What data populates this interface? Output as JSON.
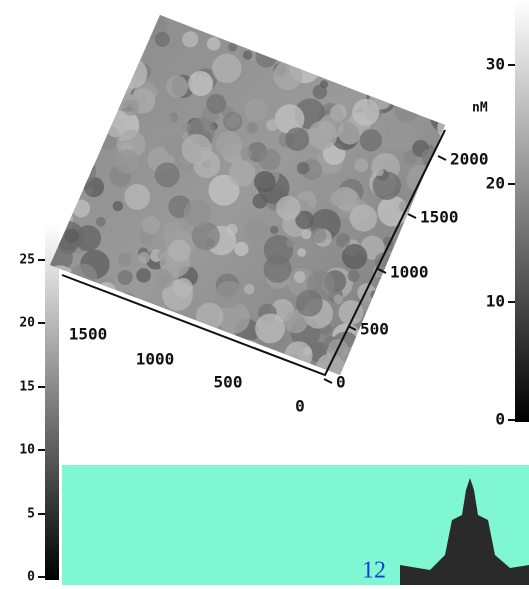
{
  "left_scale": {
    "ticks": [
      "25",
      "20",
      "15",
      "10",
      "5",
      "0"
    ]
  },
  "right_scale": {
    "ticks": [
      "30",
      "20",
      "10",
      "0"
    ],
    "unit": "nM"
  },
  "surface_axis_right": {
    "ticks": [
      "2000",
      "1500",
      "1000",
      "500",
      "0"
    ]
  },
  "surface_axis_left": {
    "ticks": [
      "1500",
      "1000",
      "500",
      "0"
    ]
  },
  "page_number": "12"
}
